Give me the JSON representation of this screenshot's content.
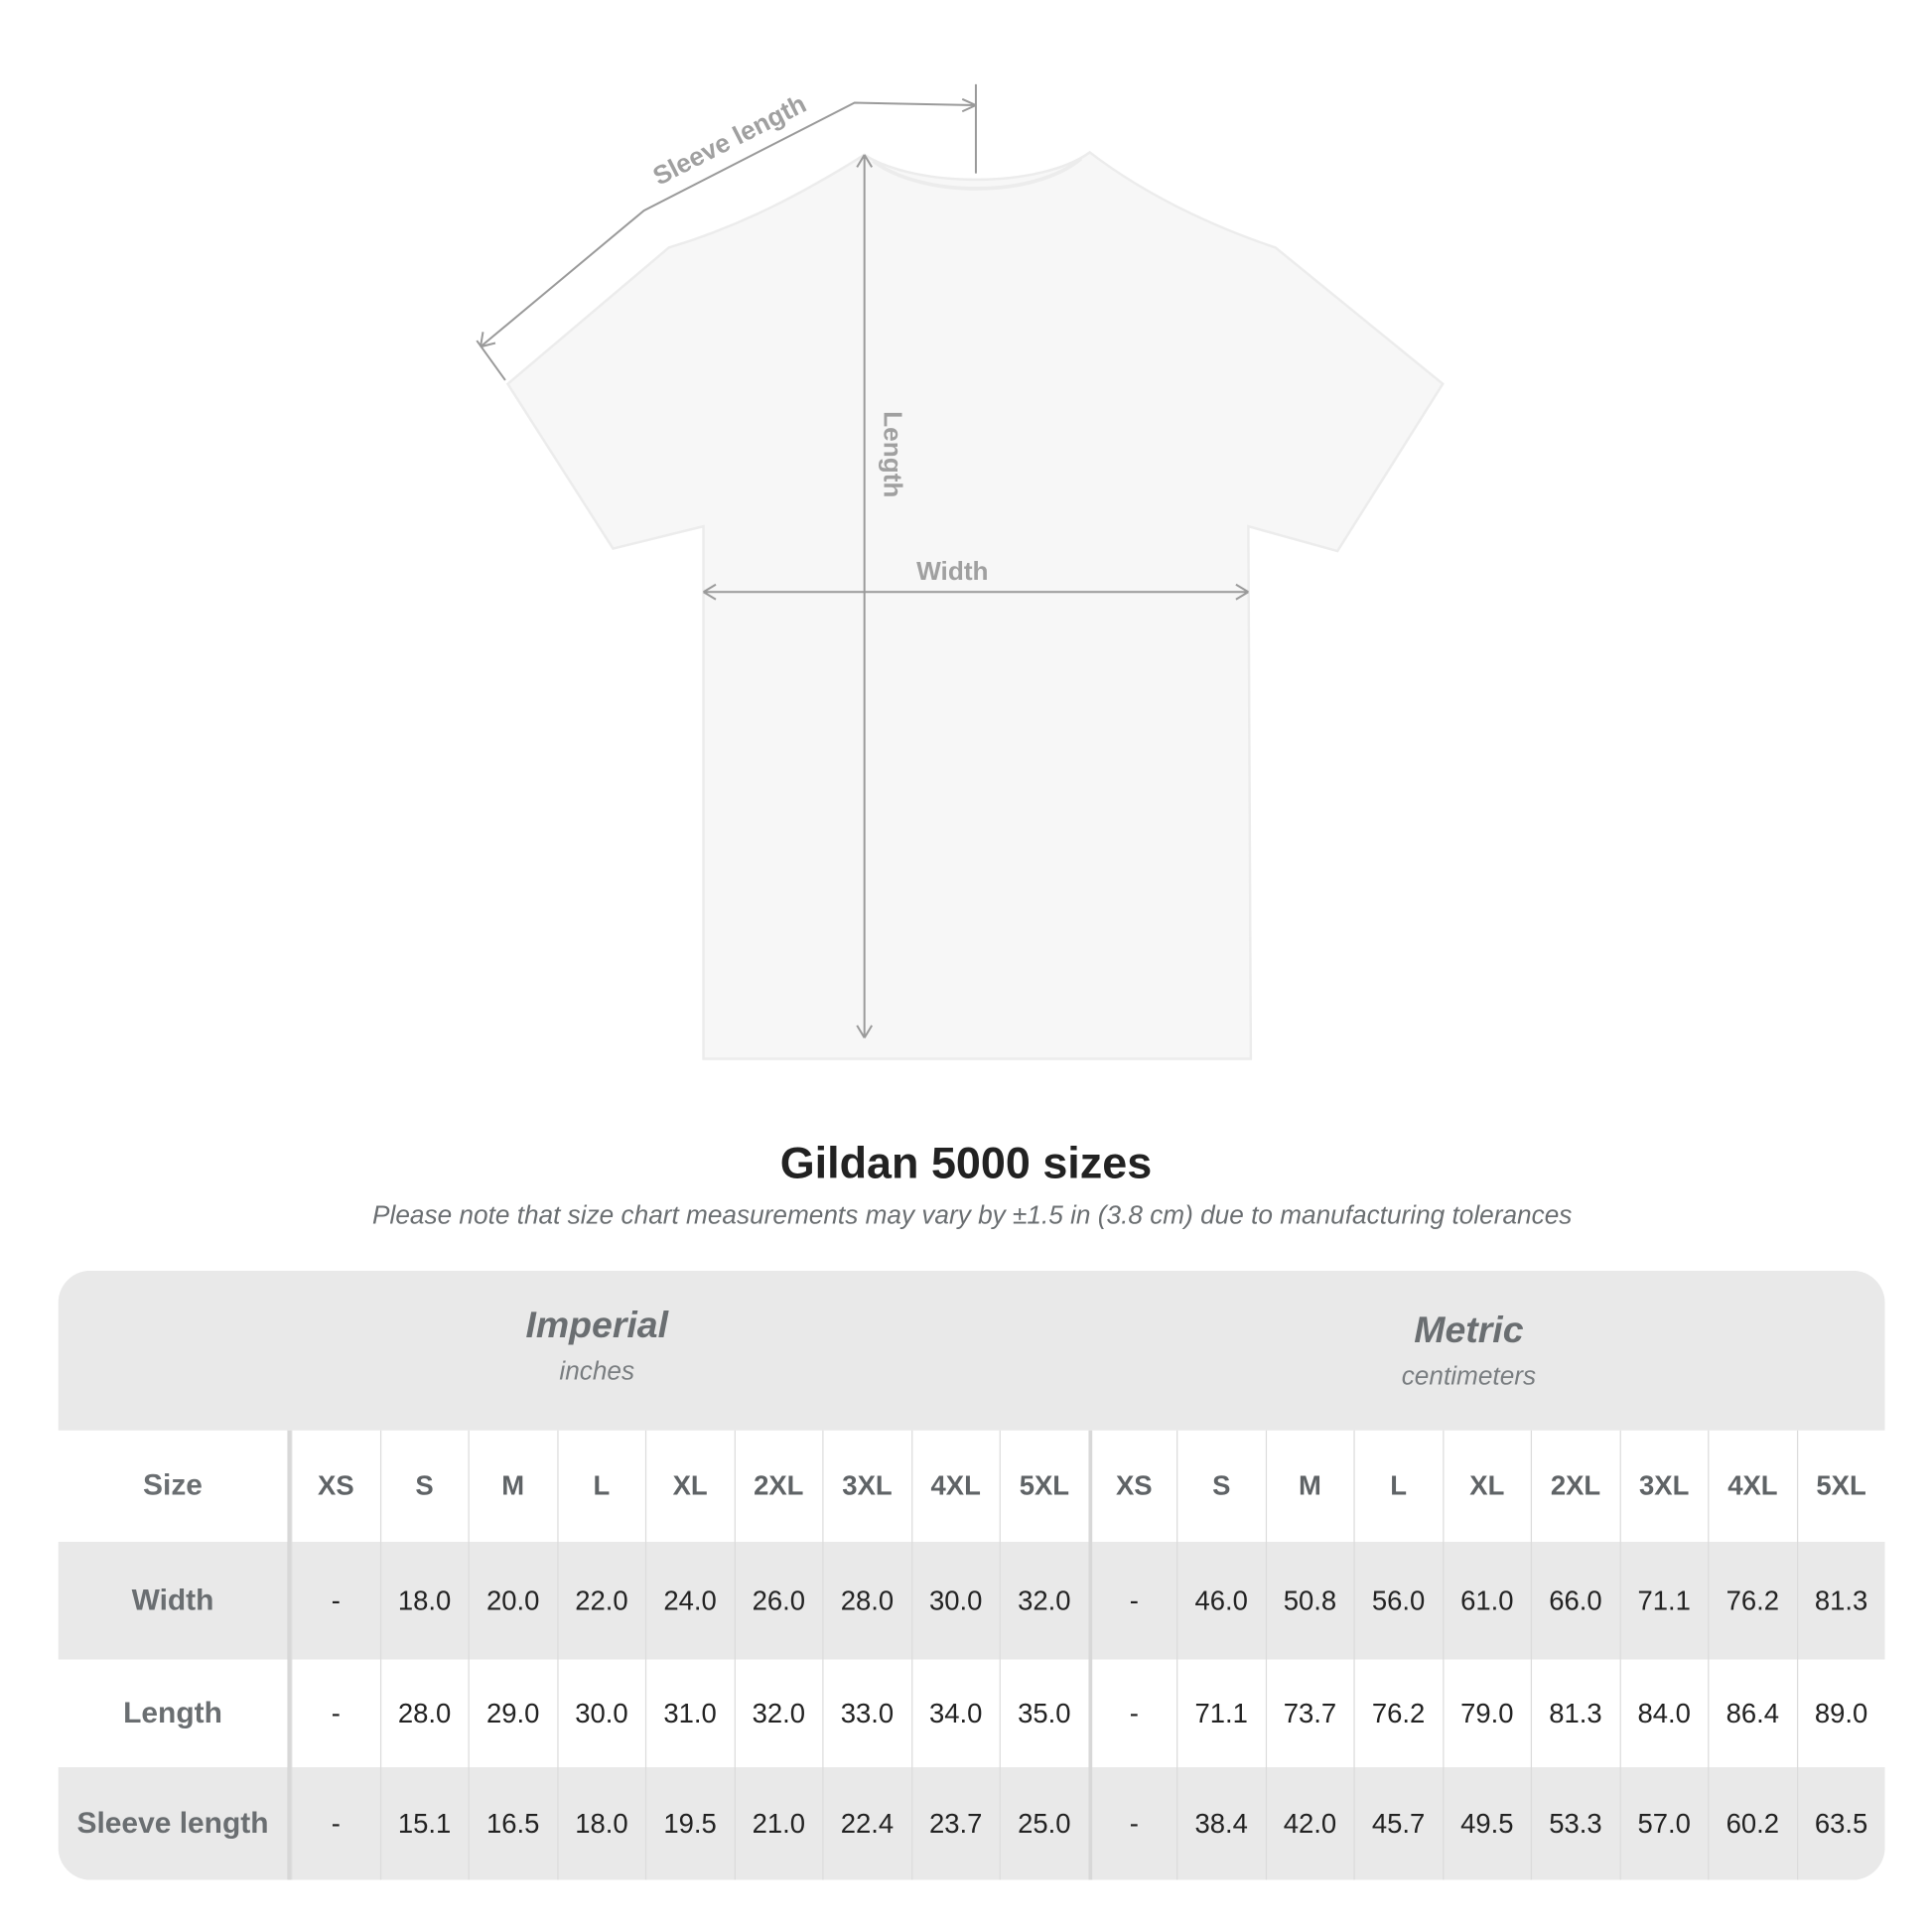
{
  "diagram": {
    "labels": {
      "sleeve": "Sleeve length",
      "length": "Length",
      "width": "Width"
    },
    "line_color": "#9a9a9a",
    "shirt_color": "#f7f7f7"
  },
  "title": "Gildan 5000 sizes",
  "note": "Please note that size chart measurements may vary by ±1.5 in (3.8 cm) due to manufacturing tolerances",
  "systems": [
    {
      "name": "Imperial",
      "unit": "inches"
    },
    {
      "name": "Metric",
      "unit": "centimeters"
    }
  ],
  "size_label": "Size",
  "sizes": [
    "XS",
    "S",
    "M",
    "L",
    "XL",
    "2XL",
    "3XL",
    "4XL",
    "5XL",
    "XS",
    "S",
    "M",
    "L",
    "XL",
    "2XL",
    "3XL",
    "4XL",
    "5XL"
  ],
  "rows": [
    {
      "label": "Width",
      "values": [
        "-",
        "18.0",
        "20.0",
        "22.0",
        "24.0",
        "26.0",
        "28.0",
        "30.0",
        "32.0",
        "-",
        "46.0",
        "50.8",
        "56.0",
        "61.0",
        "66.0",
        "71.1",
        "76.2",
        "81.3"
      ]
    },
    {
      "label": "Length",
      "values": [
        "-",
        "28.0",
        "29.0",
        "30.0",
        "31.0",
        "32.0",
        "33.0",
        "34.0",
        "35.0",
        "-",
        "71.1",
        "73.7",
        "76.2",
        "79.0",
        "81.3",
        "84.0",
        "86.4",
        "89.0"
      ]
    },
    {
      "label": "Sleeve length",
      "values": [
        "-",
        "15.1",
        "16.5",
        "18.0",
        "19.5",
        "21.0",
        "22.4",
        "23.7",
        "25.0",
        "-",
        "38.4",
        "42.0",
        "45.7",
        "49.5",
        "53.3",
        "57.0",
        "60.2",
        "63.5"
      ]
    }
  ],
  "colors": {
    "band": "#e9e9e9",
    "label_text": "#6a6e71",
    "value_text": "#222222"
  }
}
